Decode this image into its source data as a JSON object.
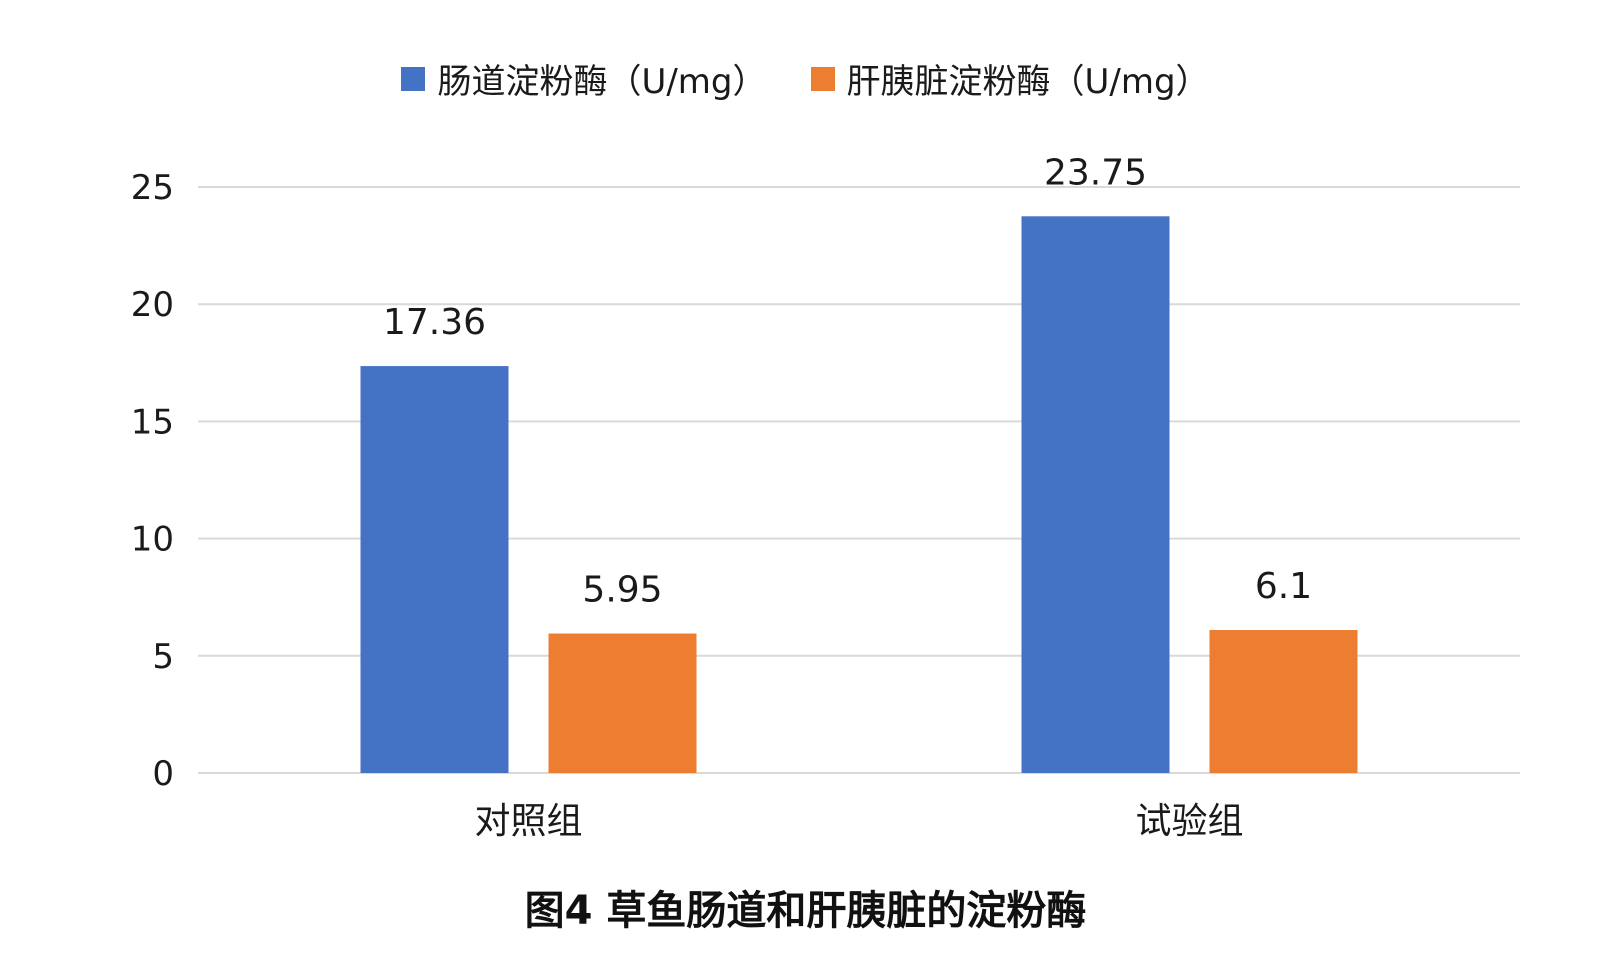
{
  "chart_data": {
    "type": "bar",
    "categories": [
      "对照组",
      "试验组"
    ],
    "series": [
      {
        "name": "肠道淀粉酶（U/mg）",
        "values": [
          17.36,
          23.75
        ],
        "color": "#4472C4"
      },
      {
        "name": "肝胰脏淀粉酶（U/mg）",
        "values": [
          5.95,
          6.1
        ],
        "color": "#ED7D31"
      }
    ],
    "value_labels": [
      [
        "17.36",
        "23.75"
      ],
      [
        "5.95",
        "6.1"
      ]
    ],
    "ylim": [
      0,
      25
    ],
    "yticks": [
      0,
      5,
      10,
      15,
      20,
      25
    ],
    "grid": true,
    "legend_position": "top",
    "gridline_color": "#D9D9D9"
  },
  "caption": "图4 草鱼肠道和肝胰脏的淀粉酶"
}
